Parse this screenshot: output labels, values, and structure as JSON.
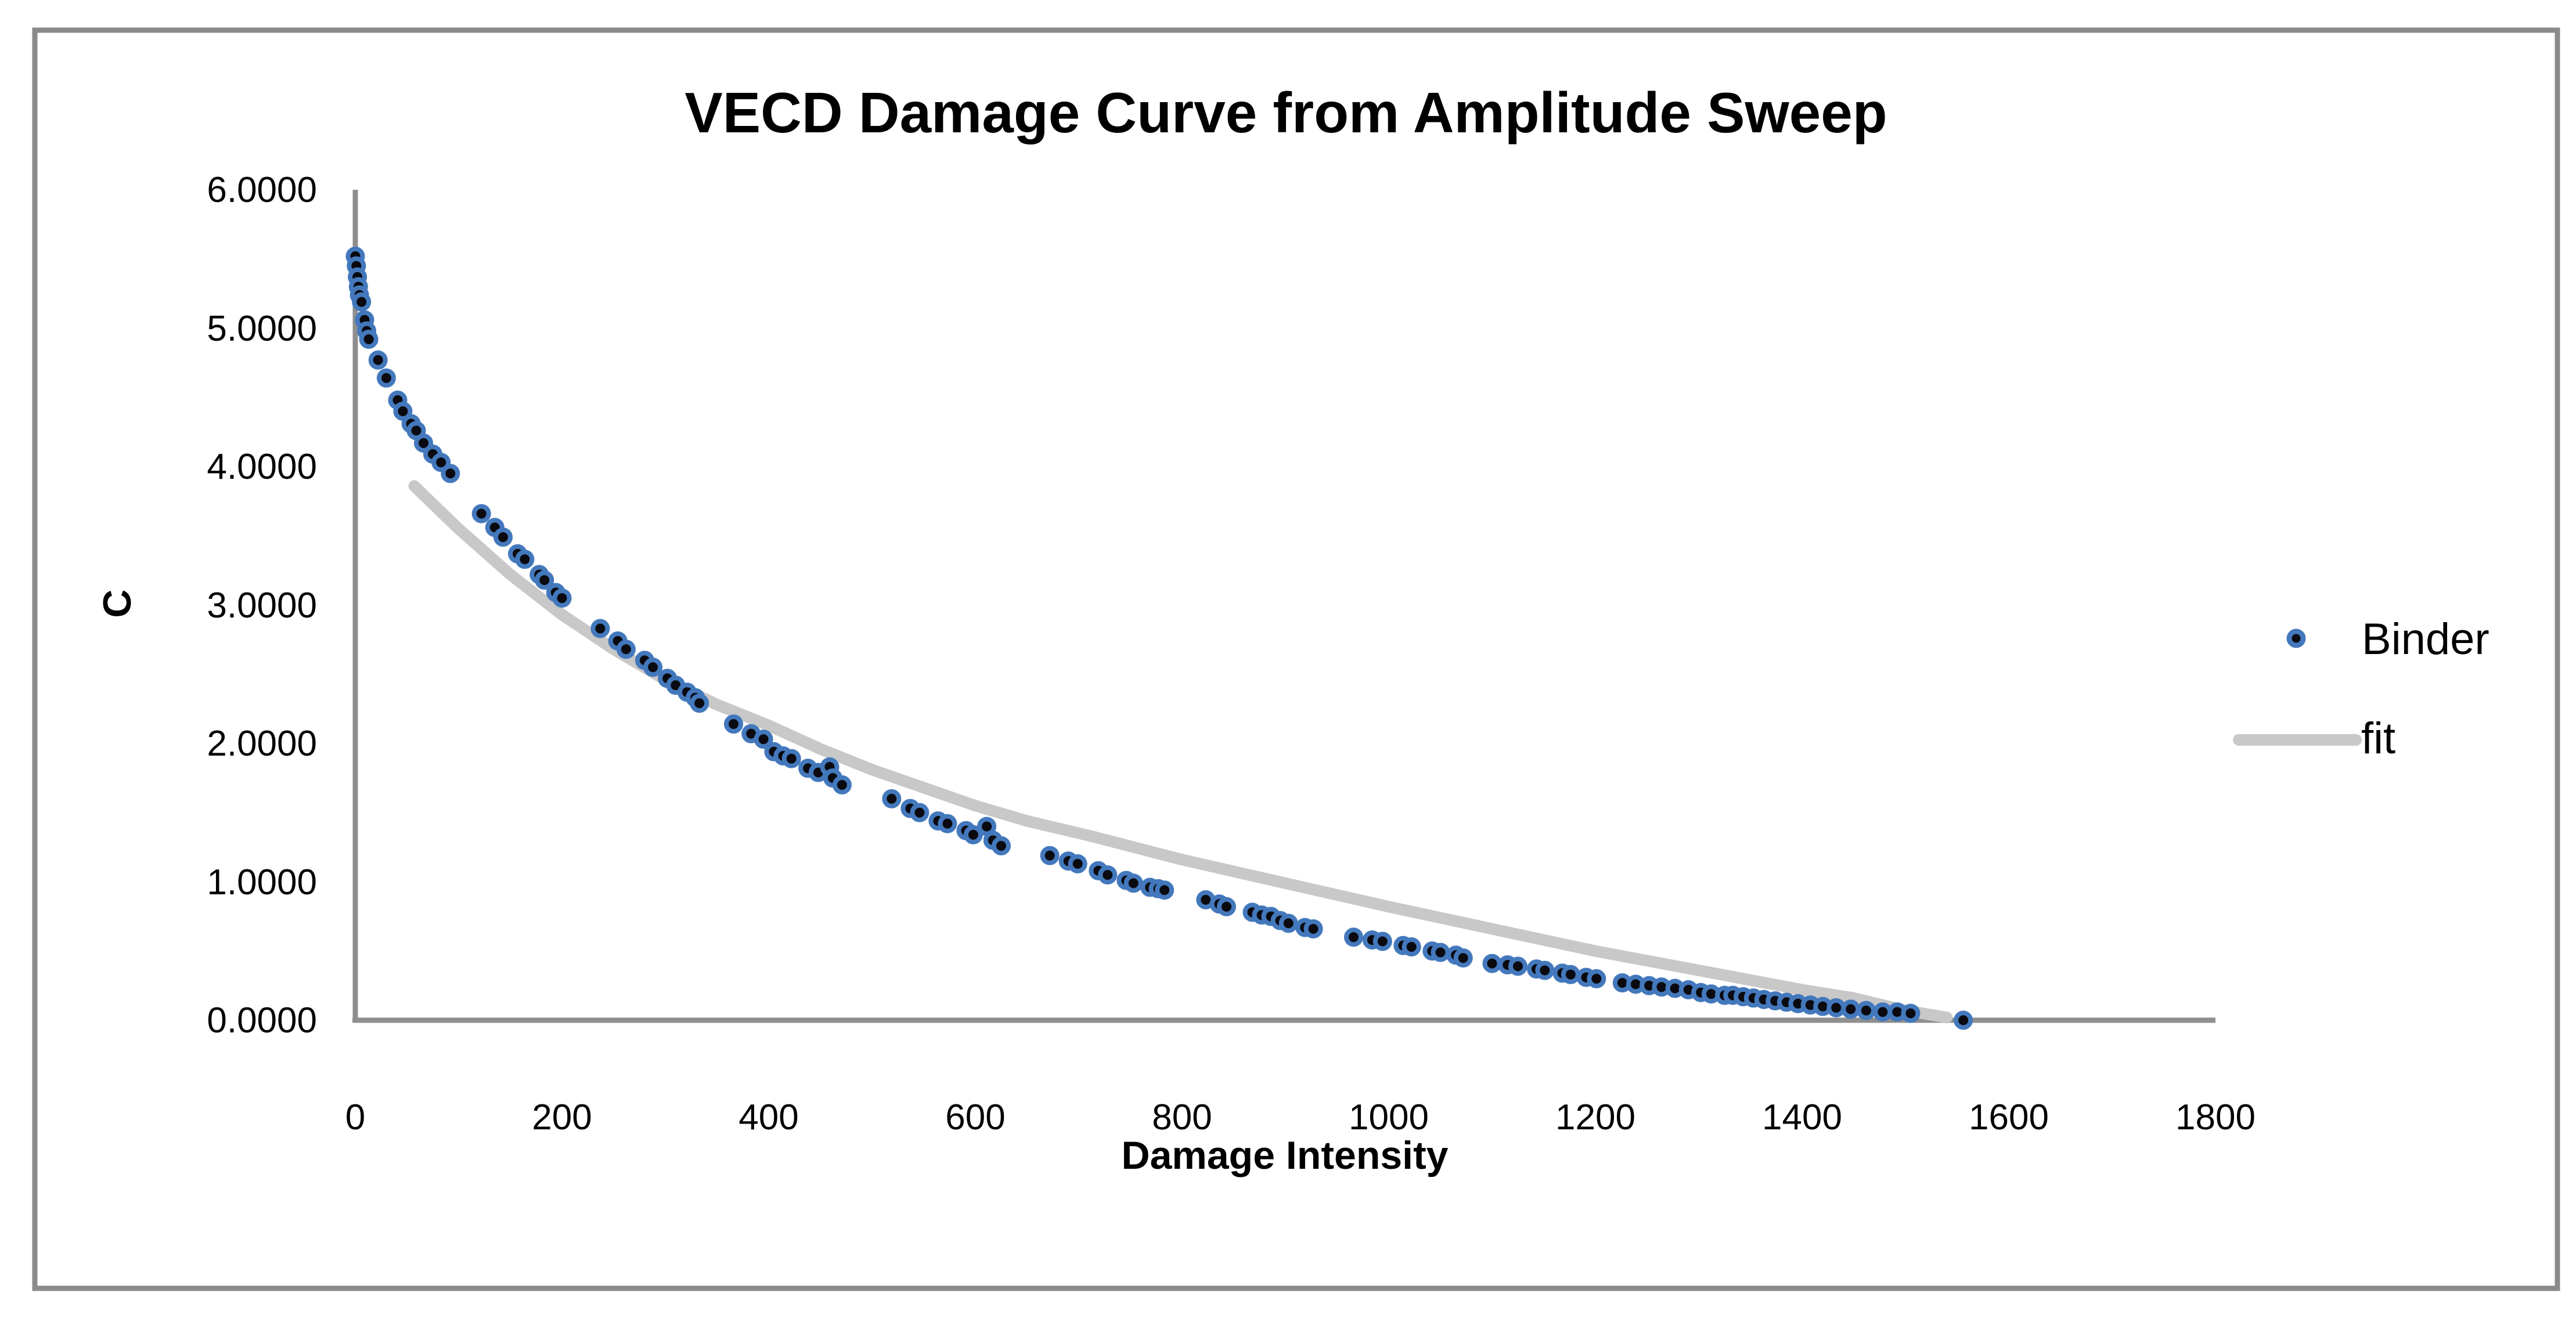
{
  "title": "VECD Damage Curve from Amplitude Sweep",
  "x_axis": {
    "label": "Damage Intensity",
    "ticks": [
      {
        "label": "0",
        "value": 0
      },
      {
        "label": "200",
        "value": 200
      },
      {
        "label": "400",
        "value": 400
      },
      {
        "label": "600",
        "value": 600
      },
      {
        "label": "800",
        "value": 800
      },
      {
        "label": "1000",
        "value": 1000
      },
      {
        "label": "1200",
        "value": 1200
      },
      {
        "label": "1400",
        "value": 1400
      },
      {
        "label": "1600",
        "value": 1600
      },
      {
        "label": "1800",
        "value": 1800
      }
    ]
  },
  "y_axis": {
    "label": "C",
    "ticks": [
      {
        "label": "0.0000",
        "value": 0
      },
      {
        "label": "1.0000",
        "value": 1
      },
      {
        "label": "2.0000",
        "value": 2
      },
      {
        "label": "3.0000",
        "value": 3
      },
      {
        "label": "4.0000",
        "value": 4
      },
      {
        "label": "5.0000",
        "value": 5
      },
      {
        "label": "6.0000",
        "value": 6
      }
    ]
  },
  "legend": {
    "items": [
      {
        "label": "Binder",
        "marker": "point"
      },
      {
        "label": "fit",
        "marker": "line"
      }
    ]
  },
  "colors": {
    "marker_ring": "#4378bc",
    "marker_core": "#0a0a10",
    "fit_line": "#c8c8c8",
    "axis_line": "#8f8f8f",
    "frame_border": "#8a8a8a",
    "text": "#000000",
    "background": "#ffffff"
  },
  "chart_data": {
    "type": "scatter",
    "title": "VECD Damage Curve from Amplitude Sweep",
    "xlabel": "Damage Intensity",
    "ylabel": "C",
    "xlim": [
      0,
      1800
    ],
    "ylim": [
      0,
      6
    ],
    "grid": false,
    "legend_position": "right",
    "series": [
      {
        "name": "Binder",
        "type": "scatter",
        "points": [
          [
            0,
            5.52
          ],
          [
            1,
            5.45
          ],
          [
            2,
            5.37
          ],
          [
            3,
            5.3
          ],
          [
            4,
            5.24
          ],
          [
            6,
            5.19
          ],
          [
            9,
            5.06
          ],
          [
            11,
            4.98
          ],
          [
            13,
            4.92
          ],
          [
            22,
            4.77
          ],
          [
            30,
            4.64
          ],
          [
            41,
            4.48
          ],
          [
            46,
            4.4
          ],
          [
            54,
            4.31
          ],
          [
            59,
            4.26
          ],
          [
            66,
            4.17
          ],
          [
            75,
            4.09
          ],
          [
            83,
            4.03
          ],
          [
            92,
            3.95
          ],
          [
            122,
            3.66
          ],
          [
            135,
            3.56
          ],
          [
            143,
            3.49
          ],
          [
            157,
            3.37
          ],
          [
            164,
            3.33
          ],
          [
            178,
            3.22
          ],
          [
            183,
            3.18
          ],
          [
            194,
            3.09
          ],
          [
            200,
            3.05
          ],
          [
            237,
            2.83
          ],
          [
            254,
            2.74
          ],
          [
            262,
            2.68
          ],
          [
            280,
            2.6
          ],
          [
            288,
            2.55
          ],
          [
            302,
            2.47
          ],
          [
            310,
            2.42
          ],
          [
            321,
            2.37
          ],
          [
            329,
            2.33
          ],
          [
            333,
            2.29
          ],
          [
            366,
            2.14
          ],
          [
            383,
            2.07
          ],
          [
            395,
            2.03
          ],
          [
            405,
            1.94
          ],
          [
            414,
            1.91
          ],
          [
            422,
            1.89
          ],
          [
            438,
            1.82
          ],
          [
            448,
            1.79
          ],
          [
            459,
            1.83
          ],
          [
            462,
            1.75
          ],
          [
            471,
            1.7
          ],
          [
            519,
            1.6
          ],
          [
            537,
            1.53
          ],
          [
            546,
            1.5
          ],
          [
            564,
            1.44
          ],
          [
            573,
            1.42
          ],
          [
            591,
            1.37
          ],
          [
            598,
            1.34
          ],
          [
            611,
            1.4
          ],
          [
            617,
            1.3
          ],
          [
            625,
            1.26
          ],
          [
            672,
            1.19
          ],
          [
            690,
            1.15
          ],
          [
            699,
            1.13
          ],
          [
            719,
            1.08
          ],
          [
            728,
            1.05
          ],
          [
            746,
            1.01
          ],
          [
            753,
            0.99
          ],
          [
            769,
            0.96
          ],
          [
            777,
            0.95
          ],
          [
            783,
            0.94
          ],
          [
            823,
            0.87
          ],
          [
            836,
            0.84
          ],
          [
            843,
            0.82
          ],
          [
            868,
            0.78
          ],
          [
            877,
            0.76
          ],
          [
            886,
            0.75
          ],
          [
            895,
            0.72
          ],
          [
            903,
            0.7
          ],
          [
            919,
            0.67
          ],
          [
            927,
            0.66
          ],
          [
            966,
            0.6
          ],
          [
            984,
            0.58
          ],
          [
            994,
            0.57
          ],
          [
            1014,
            0.54
          ],
          [
            1022,
            0.53
          ],
          [
            1042,
            0.5
          ],
          [
            1050,
            0.49
          ],
          [
            1065,
            0.47
          ],
          [
            1072,
            0.45
          ],
          [
            1100,
            0.41
          ],
          [
            1115,
            0.4
          ],
          [
            1125,
            0.39
          ],
          [
            1143,
            0.37
          ],
          [
            1151,
            0.36
          ],
          [
            1168,
            0.34
          ],
          [
            1176,
            0.33
          ],
          [
            1191,
            0.31
          ],
          [
            1201,
            0.3
          ],
          [
            1226,
            0.27
          ],
          [
            1239,
            0.26
          ],
          [
            1252,
            0.25
          ],
          [
            1264,
            0.24
          ],
          [
            1277,
            0.23
          ],
          [
            1290,
            0.22
          ],
          [
            1302,
            0.2
          ],
          [
            1312,
            0.19
          ],
          [
            1325,
            0.18
          ],
          [
            1333,
            0.18
          ],
          [
            1343,
            0.17
          ],
          [
            1353,
            0.16
          ],
          [
            1363,
            0.15
          ],
          [
            1374,
            0.14
          ],
          [
            1385,
            0.13
          ],
          [
            1396,
            0.12
          ],
          [
            1408,
            0.11
          ],
          [
            1420,
            0.1
          ],
          [
            1433,
            0.09
          ],
          [
            1447,
            0.08
          ],
          [
            1462,
            0.07
          ],
          [
            1478,
            0.06
          ],
          [
            1492,
            0.06
          ],
          [
            1505,
            0.05
          ],
          [
            1556,
            0.0
          ]
        ]
      },
      {
        "name": "fit",
        "type": "line",
        "points": [
          [
            57,
            3.86
          ],
          [
            100,
            3.55
          ],
          [
            150,
            3.22
          ],
          [
            200,
            2.93
          ],
          [
            250,
            2.68
          ],
          [
            300,
            2.46
          ],
          [
            350,
            2.28
          ],
          [
            400,
            2.13
          ],
          [
            450,
            1.96
          ],
          [
            500,
            1.81
          ],
          [
            550,
            1.68
          ],
          [
            600,
            1.55
          ],
          [
            650,
            1.44
          ],
          [
            712,
            1.33
          ],
          [
            800,
            1.16
          ],
          [
            900,
            0.99
          ],
          [
            1000,
            0.82
          ],
          [
            1100,
            0.66
          ],
          [
            1200,
            0.5
          ],
          [
            1300,
            0.36
          ],
          [
            1400,
            0.22
          ],
          [
            1450,
            0.16
          ],
          [
            1500,
            0.07
          ],
          [
            1540,
            0.02
          ]
        ]
      }
    ]
  }
}
